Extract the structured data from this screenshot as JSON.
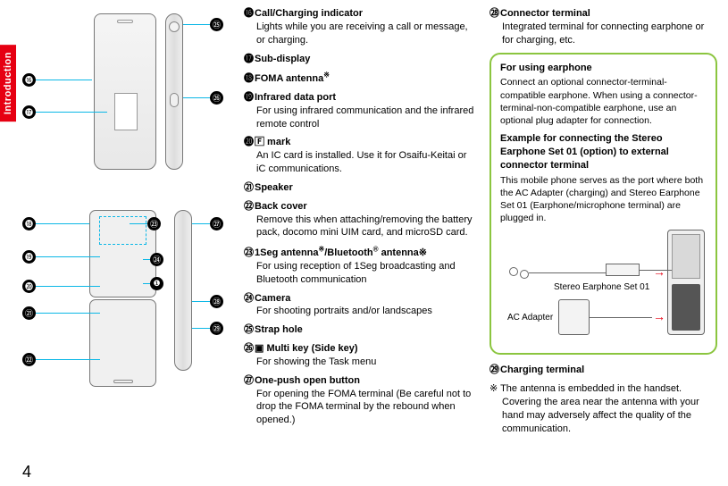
{
  "tab": "Introduction",
  "page_number": "4",
  "colors": {
    "accent_red": "#e60012",
    "callout_blue": "#0bb7e6",
    "box_green": "#8bc53f"
  },
  "circled": {
    "n16": "⓰",
    "n17": "⓱",
    "n18": "⓲",
    "n19": "⓳",
    "n20": "⓴",
    "n21": "㉑",
    "n22": "㉒",
    "n23": "㉓",
    "n24": "㉔",
    "n25": "㉕",
    "n26": "㉖",
    "n27": "㉗",
    "n28": "㉘",
    "n29": "㉙",
    "n1": "❶"
  },
  "mid_items": [
    {
      "n": "⓰",
      "title": "Call/Charging indicator",
      "body": "Lights while you are receiving a call or message, or charging."
    },
    {
      "n": "⓱",
      "title": "Sub-display",
      "body": ""
    },
    {
      "n": "⓲",
      "title": "FOMA antenna※",
      "body": ""
    },
    {
      "n": "⓳",
      "title": "Infrared data port",
      "body": "For using infrared communication and the infrared remote control"
    },
    {
      "n": "⓴",
      "title": "🄵 mark",
      "body": "An IC card is installed. Use it for Osaifu-Keitai or iC communications.",
      "icon": "felica-mark-icon"
    },
    {
      "n": "㉑",
      "title": "Speaker",
      "body": ""
    },
    {
      "n": "㉒",
      "title": "Back cover",
      "body": "Remove this when attaching/removing the battery pack, docomo mini UIM card, and microSD card."
    },
    {
      "n": "㉓",
      "title": "1Seg antenna※/Bluetooth® antenna※",
      "body": "For using reception of 1Seg broadcasting and Bluetooth communication"
    },
    {
      "n": "㉔",
      "title": "Camera",
      "body": "For shooting portraits and/or landscapes"
    },
    {
      "n": "㉕",
      "title": "Strap hole",
      "body": ""
    },
    {
      "n": "㉖",
      "title": "▣ Multi key (Side key)",
      "body": "For showing the Task menu",
      "icon": "multi-key-icon"
    },
    {
      "n": "㉗",
      "title": "One-push open button",
      "body": "For opening the FOMA terminal (Be careful not to drop the FOMA terminal by the rebound when opened.)"
    }
  ],
  "right_items": [
    {
      "n": "㉘",
      "title": "Connector terminal",
      "body": "Integrated terminal for connecting earphone or for charging, etc."
    }
  ],
  "info_box": {
    "title1": "For using earphone",
    "body1": "Connect an optional connector-terminal-compatible earphone. When using a connector-terminal-non-compatible earphone, use an optional plug adapter for connection.",
    "title2": "Example for connecting the Stereo Earphone Set 01 (option) to external connector terminal",
    "body2": "This mobile phone serves as the port where both the AC Adapter (charging) and Stereo Earphone Set 01 (Earphone/microphone terminal) are plugged in.",
    "label_earphone": "Stereo Earphone Set 01",
    "label_ac": "AC Adapter"
  },
  "charging_item": {
    "n": "㉙",
    "title": "Charging terminal"
  },
  "antenna_note": "※ The antenna is embedded in the handset. Covering the area near the antenna with your hand may adversely affect the quality of the communication."
}
